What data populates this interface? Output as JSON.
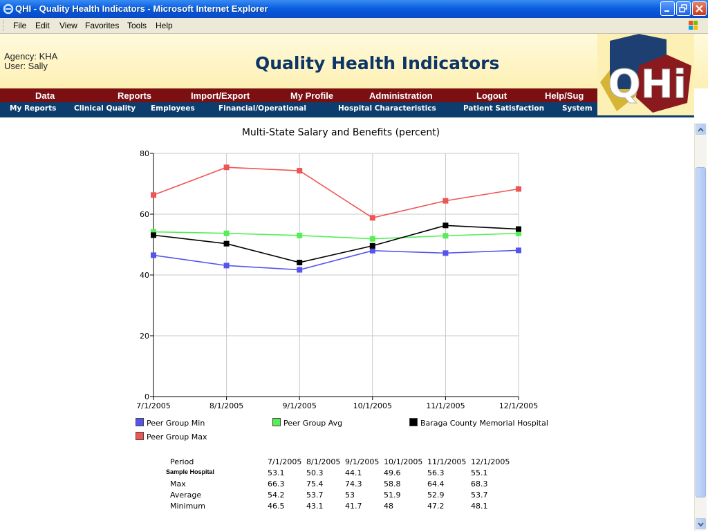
{
  "window": {
    "title": "QHI - Quality Health Indicators - Microsoft Internet Explorer"
  },
  "menubar": {
    "items": [
      "File",
      "Edit",
      "View",
      "Favorites",
      "Tools",
      "Help"
    ]
  },
  "header": {
    "agency_line": "Agency: KHA",
    "user_line": "User: Sally",
    "title": "Quality Health Indicators",
    "logo_text": "QHi"
  },
  "nav_primary": [
    "Data",
    "Reports",
    "Import/Export",
    "My Profile",
    "Administration",
    "Logout",
    "Help/Sug"
  ],
  "nav_secondary": [
    "My Reports",
    "Clinical Quality",
    "Employees",
    "Financial/Operational",
    "Hospital Characteristics",
    "Patient Satisfaction",
    "System"
  ],
  "chart_data": {
    "type": "line",
    "title": "Multi-State Salary and Benefits (percent)",
    "x": [
      "7/1/2005",
      "8/1/2005",
      "9/1/2005",
      "10/1/2005",
      "11/1/2005",
      "12/1/2005"
    ],
    "ylim": [
      0,
      80
    ],
    "yticks": [
      0,
      20,
      40,
      60,
      80
    ],
    "grid": true,
    "series": [
      {
        "name": "Peer Group Min",
        "color": "#5555ee",
        "values": [
          46.5,
          43.1,
          41.7,
          48,
          47.2,
          48.1
        ]
      },
      {
        "name": "Peer Group Avg",
        "color": "#55ee55",
        "values": [
          54.2,
          53.7,
          53,
          51.9,
          52.9,
          53.7
        ]
      },
      {
        "name": "Baraga County Memorial Hospital",
        "color": "#000000",
        "values": [
          53.1,
          50.3,
          44.1,
          49.6,
          56.3,
          55.1
        ]
      },
      {
        "name": "Peer Group Max",
        "color": "#ee5555",
        "values": [
          66.3,
          75.4,
          74.3,
          58.8,
          64.4,
          68.3
        ]
      }
    ]
  },
  "table": {
    "header_label": "Period",
    "periods": [
      "7/1/2005",
      "8/1/2005",
      "9/1/2005",
      "10/1/2005",
      "11/1/2005",
      "12/1/2005"
    ],
    "rows": [
      {
        "label": "Sample Hospital",
        "values": [
          "53.1",
          "50.3",
          "44.1",
          "49.6",
          "56.3",
          "55.1"
        ]
      },
      {
        "label": "Max",
        "values": [
          "66.3",
          "75.4",
          "74.3",
          "58.8",
          "64.4",
          "68.3"
        ]
      },
      {
        "label": "Average",
        "values": [
          "54.2",
          "53.7",
          "53",
          "51.9",
          "52.9",
          "53.7"
        ]
      },
      {
        "label": "Minimum",
        "values": [
          "46.5",
          "43.1",
          "41.7",
          "48",
          "47.2",
          "48.1"
        ]
      }
    ]
  }
}
